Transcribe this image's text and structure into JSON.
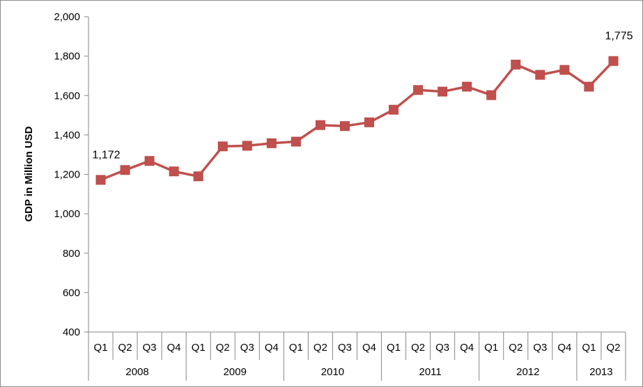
{
  "chart_data": {
    "type": "line",
    "title": "",
    "xlabel": "",
    "ylabel": "GDP in Million USD",
    "ylim": [
      400,
      2000
    ],
    "yticks": [
      "2,000",
      "1,800",
      "1,600",
      "1,400",
      "1,200",
      "1,000",
      "800",
      "600",
      "400"
    ],
    "ytick_values": [
      2000,
      1800,
      1600,
      1400,
      1200,
      1000,
      800,
      600,
      400
    ],
    "grid": false,
    "legend": "none",
    "x_levels": {
      "quarters": [
        "Q1",
        "Q2",
        "Q3",
        "Q4",
        "Q1",
        "Q2",
        "Q3",
        "Q4",
        "Q1",
        "Q2",
        "Q3",
        "Q4",
        "Q1",
        "Q2",
        "Q3",
        "Q4",
        "Q1",
        "Q2",
        "Q3",
        "Q4",
        "Q1",
        "Q2"
      ],
      "years": [
        {
          "label": "2008",
          "count": 4
        },
        {
          "label": "2009",
          "count": 4
        },
        {
          "label": "2010",
          "count": 4
        },
        {
          "label": "2011",
          "count": 4
        },
        {
          "label": "2012",
          "count": 4
        },
        {
          "label": "2013",
          "count": 2
        }
      ]
    },
    "series": [
      {
        "color": "#C0504D",
        "marker": "square",
        "values": [
          1172,
          1222,
          1268,
          1215,
          1190,
          1342,
          1345,
          1358,
          1366,
          1450,
          1445,
          1464,
          1528,
          1628,
          1620,
          1645,
          1602,
          1757,
          1705,
          1730,
          1645,
          1775
        ]
      }
    ],
    "annotations": [
      {
        "index": 0,
        "text": "1,172"
      },
      {
        "index": 21,
        "text": "1,775"
      }
    ]
  }
}
